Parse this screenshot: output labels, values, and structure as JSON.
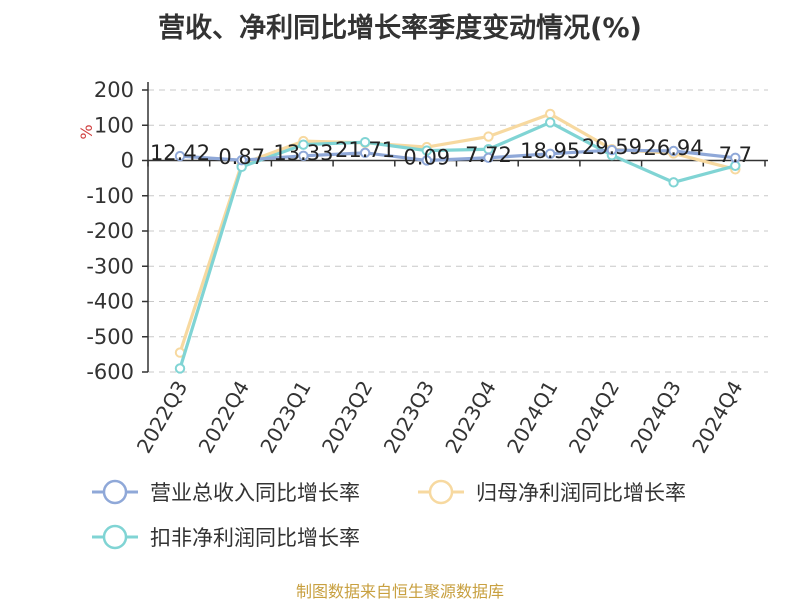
{
  "title": "营收、净利同比增长率季度变动情况(%)",
  "source": "制图数据来自恒生聚源数据库",
  "chart_data": {
    "type": "line",
    "title": "营收、净利同比增长率季度变动情况(%)",
    "ylabel": "%",
    "ylim": [
      -600,
      200
    ],
    "yticks": [
      200,
      100,
      0,
      -100,
      -200,
      -300,
      -400,
      -500,
      -600
    ],
    "grid": true,
    "legend": "bottom",
    "categories": [
      "2022Q3",
      "2022Q4",
      "2023Q1",
      "2023Q2",
      "2023Q3",
      "2023Q4",
      "2024Q1",
      "2024Q2",
      "2024Q3",
      "2024Q4"
    ],
    "series": [
      {
        "name": "营业总收入同比增长率",
        "color": "#8fa8d8",
        "values": [
          12.42,
          0.87,
          13.33,
          21.71,
          0.09,
          7.72,
          18.95,
          29.59,
          26.94,
          7.7
        ],
        "labels": [
          "12.42",
          "0.87",
          "13.33",
          "21.71",
          "0.09",
          "7.72",
          "18.95",
          "29.59",
          "26.94",
          "7.7"
        ]
      },
      {
        "name": "归母净利润同比增长率",
        "color": "#f7d9a0",
        "values": [
          -545,
          -10,
          55,
          50,
          38,
          68,
          132,
          32,
          20,
          -25
        ]
      },
      {
        "name": "扣非净利润同比增长率",
        "color": "#80d4d4",
        "values": [
          -590,
          -18,
          45,
          52,
          28,
          32,
          108,
          15,
          -62,
          -15
        ]
      }
    ]
  }
}
